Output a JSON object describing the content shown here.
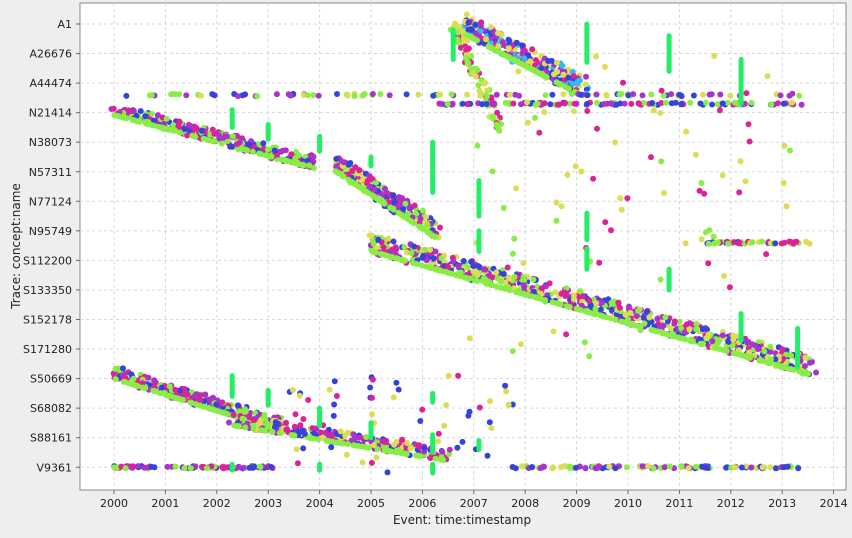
{
  "chart_data": {
    "type": "scatter",
    "xlabel": "Event: time:timestamp",
    "ylabel": "Trace: concept:name",
    "x_ticks": [
      "2000",
      "2001",
      "2002",
      "2003",
      "2004",
      "2005",
      "2006",
      "2007",
      "2008",
      "2009",
      "2010",
      "2011",
      "2012",
      "2013",
      "2014"
    ],
    "xlim": [
      1999.3,
      2014
    ],
    "y_ticks": [
      "A1",
      "A26676",
      "A44474",
      "N21414",
      "N38073",
      "N57311",
      "N77124",
      "N95749",
      "S112200",
      "S133350",
      "S152178",
      "S171280",
      "S50669",
      "S68082",
      "S88161",
      "V9361"
    ],
    "grid": true,
    "legend": "none",
    "colors": [
      "#3344dd",
      "#88ee44",
      "#dd2299",
      "#dddd55",
      "#22ee66",
      "#33bbee",
      "#cc2222",
      "#aa33cc"
    ],
    "clusters": [
      {
        "kind": "band",
        "x0": 2006.8,
        "x1": 2009.2,
        "y0": 0.0,
        "y1": 2.2,
        "n": 240,
        "spread": 0.35,
        "colors": [
          0,
          2,
          3,
          5,
          7
        ]
      },
      {
        "kind": "band",
        "x0": 2006.6,
        "x1": 2007.5,
        "y0": 0.0,
        "y1": 3.4,
        "n": 70,
        "spread": 0.25,
        "colors": [
          1,
          3,
          2
        ]
      },
      {
        "kind": "row",
        "x0": 2000.2,
        "x1": 2013.4,
        "y": 2.4,
        "n": 95,
        "colors": [
          0,
          7,
          3,
          1
        ]
      },
      {
        "kind": "row",
        "x0": 2006.3,
        "x1": 2013.4,
        "y": 2.7,
        "n": 110,
        "colors": [
          0,
          7,
          2,
          1
        ]
      },
      {
        "kind": "band",
        "x0": 2000.0,
        "x1": 2003.9,
        "y0": 2.9,
        "y1": 4.7,
        "n": 270,
        "spread": 0.2,
        "colors": [
          0,
          1,
          2,
          7
        ]
      },
      {
        "kind": "band",
        "x0": 2004.3,
        "x1": 2006.3,
        "y0": 4.7,
        "y1": 7.0,
        "n": 230,
        "spread": 0.3,
        "colors": [
          0,
          2,
          3,
          7,
          1
        ]
      },
      {
        "kind": "band",
        "x0": 2005.0,
        "x1": 2013.6,
        "y0": 7.4,
        "y1": 11.6,
        "n": 650,
        "spread": 0.32,
        "colors": [
          0,
          1,
          2,
          3,
          7
        ]
      },
      {
        "kind": "row",
        "x0": 2011.5,
        "x1": 2013.6,
        "y": 7.4,
        "n": 50,
        "colors": [
          0,
          2,
          1,
          3
        ]
      },
      {
        "kind": "band",
        "x0": 2000.0,
        "x1": 2003.3,
        "y0": 11.8,
        "y1": 13.6,
        "n": 280,
        "spread": 0.22,
        "colors": [
          0,
          1,
          2,
          7
        ]
      },
      {
        "kind": "band",
        "x0": 2002.3,
        "x1": 2006.5,
        "y0": 13.4,
        "y1": 14.6,
        "n": 220,
        "spread": 0.2,
        "colors": [
          0,
          1,
          2,
          3,
          7
        ]
      },
      {
        "kind": "row",
        "x0": 2000.0,
        "x1": 2003.1,
        "y": 15.0,
        "n": 90,
        "colors": [
          0,
          1,
          7,
          2
        ]
      },
      {
        "kind": "row",
        "x0": 2007.7,
        "x1": 2013.4,
        "y": 15.0,
        "n": 110,
        "colors": [
          0,
          1,
          7,
          3
        ]
      },
      {
        "kind": "scatter",
        "x0": 2006.8,
        "x1": 2013.2,
        "y0": 1.0,
        "y1": 11.3,
        "n": 90,
        "colors": [
          3,
          3,
          1,
          2
        ]
      },
      {
        "kind": "scatter",
        "x0": 2003.2,
        "x1": 2007.8,
        "y0": 11.9,
        "y1": 15.2,
        "n": 60,
        "colors": [
          3,
          0,
          2
        ]
      }
    ],
    "vbars": [
      {
        "x": 2006.6,
        "y0": 0.2,
        "y1": 1.2
      },
      {
        "x": 2009.2,
        "y0": 0.0,
        "y1": 1.3
      },
      {
        "x": 2010.8,
        "y0": 0.4,
        "y1": 1.6
      },
      {
        "x": 2012.2,
        "y0": 1.2,
        "y1": 2.7
      },
      {
        "x": 2002.3,
        "y0": 2.9,
        "y1": 3.5
      },
      {
        "x": 2003.0,
        "y0": 3.4,
        "y1": 3.9
      },
      {
        "x": 2004.0,
        "y0": 3.8,
        "y1": 4.3
      },
      {
        "x": 2005.0,
        "y0": 4.5,
        "y1": 4.8
      },
      {
        "x": 2006.2,
        "y0": 4.0,
        "y1": 4.9
      },
      {
        "x": 2006.2,
        "y0": 5.0,
        "y1": 5.7
      },
      {
        "x": 2007.1,
        "y0": 5.3,
        "y1": 6.5
      },
      {
        "x": 2007.1,
        "y0": 7.0,
        "y1": 7.7
      },
      {
        "x": 2009.2,
        "y0": 6.4,
        "y1": 7.3
      },
      {
        "x": 2009.2,
        "y0": 7.6,
        "y1": 8.3
      },
      {
        "x": 2010.8,
        "y0": 8.3,
        "y1": 9.0
      },
      {
        "x": 2012.2,
        "y0": 9.8,
        "y1": 10.7
      },
      {
        "x": 2013.3,
        "y0": 10.3,
        "y1": 11.6
      },
      {
        "x": 2002.3,
        "y0": 11.9,
        "y1": 12.6
      },
      {
        "x": 2003.0,
        "y0": 12.4,
        "y1": 12.9
      },
      {
        "x": 2004.0,
        "y0": 13.0,
        "y1": 13.6
      },
      {
        "x": 2005.0,
        "y0": 13.5,
        "y1": 14.0
      },
      {
        "x": 2006.2,
        "y0": 13.9,
        "y1": 14.5
      },
      {
        "x": 2006.2,
        "y0": 12.5,
        "y1": 12.8
      },
      {
        "x": 2007.1,
        "y0": 14.1,
        "y1": 14.4
      },
      {
        "x": 2002.3,
        "y0": 14.9,
        "y1": 15.1
      },
      {
        "x": 2004.0,
        "y0": 14.9,
        "y1": 15.1
      },
      {
        "x": 2006.2,
        "y0": 14.9,
        "y1": 15.2
      }
    ]
  }
}
